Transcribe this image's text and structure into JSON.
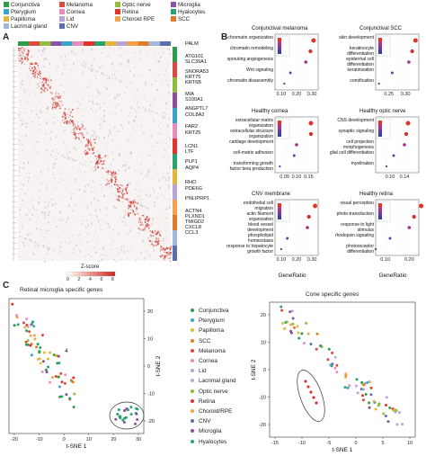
{
  "panel_letters": {
    "a": "A",
    "b": "B",
    "c": "C"
  },
  "tissue_legend": [
    {
      "label": "Conjunctiva",
      "color": "#2e9d4a"
    },
    {
      "label": "Melanoma",
      "color": "#d94b3e"
    },
    {
      "label": "Optic nerve",
      "color": "#8fbf3a"
    },
    {
      "label": "Microglia",
      "color": "#8e4fa3"
    },
    {
      "label": "Pterygium",
      "color": "#3aa3c9"
    },
    {
      "label": "Cornea",
      "color": "#e88dbb"
    },
    {
      "label": "Retina",
      "color": "#e0342c"
    },
    {
      "label": "Hyalocytes",
      "color": "#27a36d"
    },
    {
      "label": "Papilloma",
      "color": "#e4b63b"
    },
    {
      "label": "Lid",
      "color": "#b9a3d6"
    },
    {
      "label": "Choroid RPE",
      "color": "#f4a24a"
    },
    {
      "label": "SCC",
      "color": "#e07b2a"
    },
    {
      "label": "Lacrimal gland",
      "color": "#9fb7d9"
    },
    {
      "label": "CNV",
      "color": "#5b6fb0"
    }
  ],
  "heatmap": {
    "genes": [
      "PALM",
      "ATG101",
      "SLC39A1",
      "SNORA53",
      "KRT75",
      "KRT6B",
      "MIA",
      "S100A1",
      "ANGPTL7",
      "COL8A2",
      "FAR2",
      "KRT25",
      "LCN1",
      "LTF",
      "PLP1",
      "AQP4",
      "RHO",
      "PDE6G",
      "PNLIPRP1",
      "ACTN4",
      "PLXND1",
      "TMIGD2",
      "CXCL8",
      "CCL3"
    ],
    "zscore_title": "Z-score",
    "zscore_ticks": [
      "0",
      "2",
      "4",
      "6",
      "8"
    ]
  },
  "go_panels": [
    {
      "title": "Conjunctival melanoma",
      "terms": [
        "chromatin organization",
        "chromatin remodeling",
        "sprouting angiogenesis",
        "Wnt signaling",
        "chromatin disassembly"
      ],
      "x_ticks": [
        "0.10",
        "0.20",
        "0.30"
      ],
      "dots": [
        [
          0.31,
          0
        ],
        [
          0.29,
          1
        ],
        [
          0.26,
          2
        ],
        [
          0.16,
          3
        ],
        [
          0.12,
          4
        ]
      ]
    },
    {
      "title": "Conjunctival SCC",
      "terms": [
        "skin development",
        "keratinocyte differentiation",
        "epidermal cell differentiation",
        "keratinization",
        "cornification"
      ],
      "x_ticks": [
        "0.25",
        "0.30"
      ],
      "dots": [
        [
          0.33,
          0
        ],
        [
          0.32,
          1
        ],
        [
          0.31,
          2
        ],
        [
          0.26,
          3
        ],
        [
          0.22,
          4
        ]
      ]
    },
    {
      "title": "Healthy cornea",
      "terms": [
        "extracellular matrix organization",
        "extracellular structure organization",
        "cartilage development",
        "cell-matrix adhesion",
        "transforming growth factor beta production"
      ],
      "x_ticks": [
        "0.05",
        "0.10",
        "0.15"
      ],
      "dots": [
        [
          0.16,
          0
        ],
        [
          0.16,
          1
        ],
        [
          0.1,
          2
        ],
        [
          0.09,
          3
        ],
        [
          0.03,
          4
        ]
      ]
    },
    {
      "title": "Healthy optic nerve",
      "terms": [
        "CNS development",
        "synaptic signaling",
        "cell projection morphogenesis",
        "glial cell differentiation",
        "myelination"
      ],
      "x_ticks": [
        "0.10",
        "0.14"
      ],
      "dots": [
        [
          0.15,
          0
        ],
        [
          0.145,
          1
        ],
        [
          0.14,
          2
        ],
        [
          0.11,
          3
        ],
        [
          0.09,
          4
        ]
      ]
    },
    {
      "title": "CNV membrane",
      "terms": [
        "endothelial cell migration",
        "actin filament organization",
        "blood vessel development",
        "phospholipid homeostasis",
        "response to hepatocyte growth factor"
      ],
      "x_ticks": [
        "0.10",
        "0.20",
        "0.30"
      ],
      "dots": [
        [
          0.32,
          0
        ],
        [
          0.28,
          1
        ],
        [
          0.27,
          2
        ],
        [
          0.14,
          3
        ],
        [
          0.1,
          4
        ]
      ]
    },
    {
      "title": "Healthy retina",
      "terms": [
        "visual perception",
        "photo-transduction",
        "response to light stimulus",
        "rhodopsin signaling",
        "photoreceptor differentiation"
      ],
      "x_ticks": [
        "0.10",
        "0.20"
      ],
      "dots": [
        [
          0.25,
          0
        ],
        [
          0.22,
          1
        ],
        [
          0.2,
          2
        ],
        [
          0.12,
          3
        ],
        [
          0.06,
          4
        ]
      ]
    }
  ],
  "go_xlabel": "GeneRatio",
  "tsne": {
    "left_title": "Retinal microglia specific genes",
    "right_title": "Cone specific genes",
    "xlabel": "t-SNE 1",
    "ylabel": "t-SNE 2",
    "left_xticks": [
      "-20",
      "-10",
      "0",
      "10",
      "20",
      "30"
    ],
    "left_yticks": [
      "20",
      "10",
      "0",
      "-10",
      "-20"
    ],
    "right_xticks": [
      "-15",
      "-10",
      "-5",
      "0",
      "5",
      "10"
    ],
    "right_yticks": [
      "20",
      "10",
      "0",
      "-10",
      "-20"
    ],
    "left_annot": "4"
  },
  "chart_data": [
    {
      "type": "heatmap",
      "title": "",
      "zscore_range": [
        0,
        8
      ]
    },
    {
      "type": "scatter",
      "title": "Retinal microglia specific genes",
      "xlabel": "t-SNE 1",
      "ylabel": "t-SNE 2",
      "xlim": [
        -22,
        38
      ],
      "ylim": [
        -25,
        25
      ]
    },
    {
      "type": "scatter",
      "title": "Cone specific genes",
      "xlabel": "t-SNE 1",
      "ylabel": "t-SNE 2",
      "xlim": [
        -16,
        12
      ],
      "ylim": [
        -25,
        25
      ]
    }
  ]
}
